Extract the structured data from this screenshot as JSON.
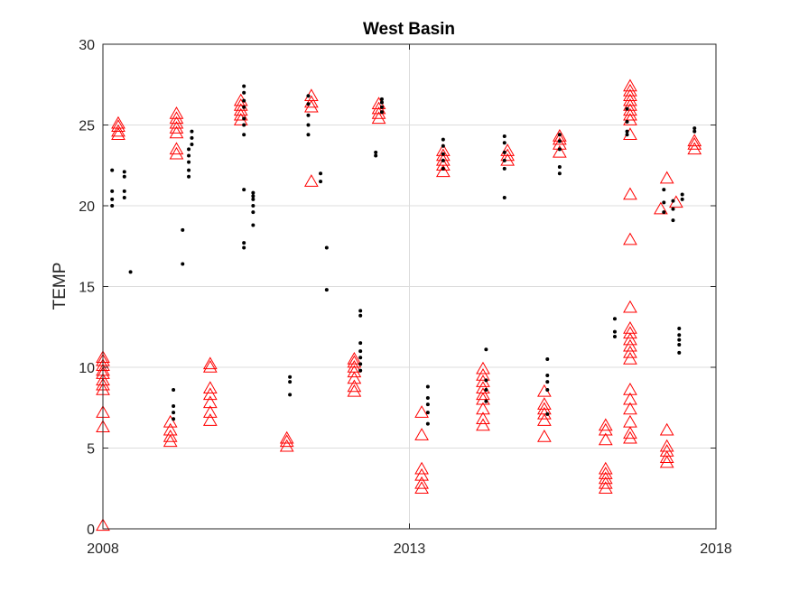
{
  "chart_data": {
    "type": "scatter",
    "title": "West Basin",
    "xlabel": "",
    "ylabel": "TEMP",
    "xlim": [
      2008,
      2018
    ],
    "ylim": [
      0,
      30
    ],
    "xticks": [
      2008,
      2013,
      2018
    ],
    "xtick_labels": [
      "2008",
      "2013",
      "2018"
    ],
    "yticks": [
      0,
      5,
      10,
      15,
      20,
      25,
      30
    ],
    "ytick_labels": [
      "0",
      "5",
      "10",
      "15",
      "20",
      "25",
      "30"
    ],
    "grid": true,
    "series": [
      {
        "marker": "triangle",
        "color": "#ff0000",
        "points": [
          [
            2008.0,
            0.2
          ],
          [
            2008.0,
            6.3
          ],
          [
            2008.0,
            7.2
          ],
          [
            2008.0,
            8.6
          ],
          [
            2008.0,
            8.9
          ],
          [
            2008.0,
            9.2
          ],
          [
            2008.0,
            9.6
          ],
          [
            2008.0,
            9.8
          ],
          [
            2008.0,
            10.1
          ],
          [
            2008.0,
            10.4
          ],
          [
            2008.0,
            10.6
          ],
          [
            2008.25,
            24.4
          ],
          [
            2008.25,
            24.6
          ],
          [
            2008.25,
            24.9
          ],
          [
            2008.25,
            25.1
          ],
          [
            2009.1,
            5.4
          ],
          [
            2009.1,
            5.7
          ],
          [
            2009.1,
            6.1
          ],
          [
            2009.1,
            6.6
          ],
          [
            2009.2,
            23.2
          ],
          [
            2009.2,
            23.5
          ],
          [
            2009.2,
            24.5
          ],
          [
            2009.2,
            24.8
          ],
          [
            2009.2,
            25.1
          ],
          [
            2009.2,
            25.4
          ],
          [
            2009.2,
            25.7
          ],
          [
            2009.75,
            6.7
          ],
          [
            2009.75,
            7.2
          ],
          [
            2009.75,
            7.8
          ],
          [
            2009.75,
            8.3
          ],
          [
            2009.75,
            8.7
          ],
          [
            2009.75,
            10.0
          ],
          [
            2009.75,
            10.2
          ],
          [
            2010.25,
            25.3
          ],
          [
            2010.25,
            25.6
          ],
          [
            2010.25,
            25.9
          ],
          [
            2010.25,
            26.2
          ],
          [
            2010.25,
            26.5
          ],
          [
            2011.0,
            5.1
          ],
          [
            2011.0,
            5.4
          ],
          [
            2011.0,
            5.6
          ],
          [
            2011.4,
            21.5
          ],
          [
            2011.4,
            26.1
          ],
          [
            2011.4,
            26.4
          ],
          [
            2011.4,
            26.8
          ],
          [
            2012.1,
            8.5
          ],
          [
            2012.1,
            8.8
          ],
          [
            2012.1,
            9.3
          ],
          [
            2012.1,
            9.7
          ],
          [
            2012.1,
            10.0
          ],
          [
            2012.1,
            10.3
          ],
          [
            2012.1,
            10.5
          ],
          [
            2012.5,
            25.4
          ],
          [
            2012.5,
            25.7
          ],
          [
            2012.5,
            26.0
          ],
          [
            2012.5,
            26.3
          ],
          [
            2013.2,
            2.5
          ],
          [
            2013.2,
            2.8
          ],
          [
            2013.2,
            3.3
          ],
          [
            2013.2,
            3.7
          ],
          [
            2013.2,
            5.8
          ],
          [
            2013.2,
            7.2
          ],
          [
            2013.55,
            22.1
          ],
          [
            2013.55,
            22.5
          ],
          [
            2013.55,
            22.8
          ],
          [
            2013.55,
            23.1
          ],
          [
            2013.55,
            23.4
          ],
          [
            2014.2,
            6.4
          ],
          [
            2014.2,
            6.8
          ],
          [
            2014.2,
            7.4
          ],
          [
            2014.2,
            8.0
          ],
          [
            2014.2,
            8.3
          ],
          [
            2014.2,
            8.7
          ],
          [
            2014.2,
            9.1
          ],
          [
            2014.2,
            9.5
          ],
          [
            2014.2,
            9.9
          ],
          [
            2014.6,
            22.8
          ],
          [
            2014.6,
            23.1
          ],
          [
            2014.6,
            23.4
          ],
          [
            2015.2,
            5.7
          ],
          [
            2015.2,
            6.7
          ],
          [
            2015.2,
            7.1
          ],
          [
            2015.2,
            7.4
          ],
          [
            2015.2,
            7.7
          ],
          [
            2015.2,
            8.5
          ],
          [
            2015.45,
            23.3
          ],
          [
            2015.45,
            23.8
          ],
          [
            2015.45,
            24.1
          ],
          [
            2015.45,
            24.3
          ],
          [
            2016.2,
            2.5
          ],
          [
            2016.2,
            2.8
          ],
          [
            2016.2,
            3.1
          ],
          [
            2016.2,
            3.4
          ],
          [
            2016.2,
            3.7
          ],
          [
            2016.2,
            5.5
          ],
          [
            2016.2,
            6.1
          ],
          [
            2016.2,
            6.4
          ],
          [
            2016.6,
            5.6
          ],
          [
            2016.6,
            5.9
          ],
          [
            2016.6,
            6.6
          ],
          [
            2016.6,
            7.4
          ],
          [
            2016.6,
            8.0
          ],
          [
            2016.6,
            8.6
          ],
          [
            2016.6,
            10.5
          ],
          [
            2016.6,
            10.9
          ],
          [
            2016.6,
            11.3
          ],
          [
            2016.6,
            11.7
          ],
          [
            2016.6,
            12.1
          ],
          [
            2016.6,
            12.4
          ],
          [
            2016.6,
            13.7
          ],
          [
            2016.6,
            17.9
          ],
          [
            2016.6,
            20.7
          ],
          [
            2016.6,
            24.4
          ],
          [
            2016.6,
            25.3
          ],
          [
            2016.6,
            25.6
          ],
          [
            2016.6,
            25.9
          ],
          [
            2016.6,
            26.2
          ],
          [
            2016.6,
            26.5
          ],
          [
            2016.6,
            26.8
          ],
          [
            2016.6,
            27.1
          ],
          [
            2016.6,
            27.4
          ],
          [
            2017.2,
            4.1
          ],
          [
            2017.2,
            4.4
          ],
          [
            2017.2,
            4.8
          ],
          [
            2017.2,
            5.1
          ],
          [
            2017.2,
            6.1
          ],
          [
            2017.1,
            19.8
          ],
          [
            2017.2,
            21.7
          ],
          [
            2017.35,
            20.2
          ],
          [
            2017.65,
            23.5
          ],
          [
            2017.65,
            23.8
          ],
          [
            2017.65,
            24.0
          ]
        ]
      },
      {
        "marker": "dot",
        "color": "#000000",
        "points": [
          [
            2008.15,
            20.0
          ],
          [
            2008.15,
            20.4
          ],
          [
            2008.15,
            20.9
          ],
          [
            2008.15,
            22.2
          ],
          [
            2008.35,
            20.5
          ],
          [
            2008.35,
            20.9
          ],
          [
            2008.35,
            21.8
          ],
          [
            2008.35,
            22.1
          ],
          [
            2008.45,
            15.9
          ],
          [
            2009.15,
            6.8
          ],
          [
            2009.15,
            7.2
          ],
          [
            2009.15,
            7.6
          ],
          [
            2009.15,
            8.6
          ],
          [
            2009.3,
            16.4
          ],
          [
            2009.3,
            18.5
          ],
          [
            2009.4,
            21.8
          ],
          [
            2009.4,
            22.2
          ],
          [
            2009.4,
            22.7
          ],
          [
            2009.4,
            23.1
          ],
          [
            2009.4,
            23.5
          ],
          [
            2009.45,
            23.8
          ],
          [
            2009.45,
            24.2
          ],
          [
            2009.45,
            24.6
          ],
          [
            2010.3,
            17.4
          ],
          [
            2010.3,
            17.7
          ],
          [
            2010.3,
            21.0
          ],
          [
            2010.3,
            24.4
          ],
          [
            2010.3,
            25.0
          ],
          [
            2010.3,
            25.4
          ],
          [
            2010.3,
            26.1
          ],
          [
            2010.3,
            26.5
          ],
          [
            2010.3,
            27.0
          ],
          [
            2010.3,
            27.4
          ],
          [
            2010.45,
            18.8
          ],
          [
            2010.45,
            19.6
          ],
          [
            2010.45,
            20.0
          ],
          [
            2010.45,
            20.4
          ],
          [
            2010.45,
            20.6
          ],
          [
            2010.45,
            20.8
          ],
          [
            2011.05,
            8.3
          ],
          [
            2011.05,
            9.1
          ],
          [
            2011.05,
            9.4
          ],
          [
            2011.35,
            24.4
          ],
          [
            2011.35,
            25.0
          ],
          [
            2011.35,
            25.6
          ],
          [
            2011.35,
            26.3
          ],
          [
            2011.35,
            26.8
          ],
          [
            2011.55,
            21.5
          ],
          [
            2011.55,
            22.0
          ],
          [
            2011.65,
            17.4
          ],
          [
            2011.65,
            14.8
          ],
          [
            2012.2,
            9.8
          ],
          [
            2012.2,
            10.2
          ],
          [
            2012.2,
            10.6
          ],
          [
            2012.2,
            11.0
          ],
          [
            2012.2,
            11.5
          ],
          [
            2012.2,
            13.2
          ],
          [
            2012.2,
            13.5
          ],
          [
            2012.45,
            23.1
          ],
          [
            2012.45,
            23.3
          ],
          [
            2012.55,
            25.8
          ],
          [
            2012.55,
            26.1
          ],
          [
            2012.55,
            26.4
          ],
          [
            2012.55,
            26.6
          ],
          [
            2013.3,
            6.5
          ],
          [
            2013.3,
            7.2
          ],
          [
            2013.3,
            7.7
          ],
          [
            2013.3,
            8.1
          ],
          [
            2013.3,
            8.8
          ],
          [
            2013.55,
            22.3
          ],
          [
            2013.55,
            22.8
          ],
          [
            2013.55,
            23.2
          ],
          [
            2013.55,
            23.7
          ],
          [
            2013.55,
            24.1
          ],
          [
            2014.25,
            7.9
          ],
          [
            2014.25,
            8.6
          ],
          [
            2014.25,
            9.2
          ],
          [
            2014.25,
            11.1
          ],
          [
            2014.55,
            20.5
          ],
          [
            2014.55,
            22.3
          ],
          [
            2014.55,
            22.8
          ],
          [
            2014.55,
            23.3
          ],
          [
            2014.55,
            23.9
          ],
          [
            2014.55,
            24.3
          ],
          [
            2015.25,
            7.1
          ],
          [
            2015.25,
            8.6
          ],
          [
            2015.25,
            9.1
          ],
          [
            2015.25,
            9.5
          ],
          [
            2015.25,
            10.5
          ],
          [
            2015.45,
            22.0
          ],
          [
            2015.45,
            22.4
          ],
          [
            2015.45,
            23.5
          ],
          [
            2015.45,
            24.0
          ],
          [
            2015.45,
            24.4
          ],
          [
            2016.35,
            11.9
          ],
          [
            2016.35,
            12.2
          ],
          [
            2016.35,
            13.0
          ],
          [
            2016.55,
            24.4
          ],
          [
            2016.55,
            24.6
          ],
          [
            2016.55,
            25.2
          ],
          [
            2016.55,
            26.0
          ],
          [
            2017.15,
            19.6
          ],
          [
            2017.15,
            20.2
          ],
          [
            2017.15,
            21.0
          ],
          [
            2017.3,
            19.1
          ],
          [
            2017.3,
            19.8
          ],
          [
            2017.3,
            20.3
          ],
          [
            2017.45,
            20.4
          ],
          [
            2017.45,
            20.7
          ],
          [
            2017.4,
            10.9
          ],
          [
            2017.4,
            11.4
          ],
          [
            2017.4,
            11.7
          ],
          [
            2017.4,
            12.0
          ],
          [
            2017.4,
            12.4
          ],
          [
            2017.65,
            24.6
          ],
          [
            2017.65,
            24.8
          ]
        ]
      }
    ]
  }
}
